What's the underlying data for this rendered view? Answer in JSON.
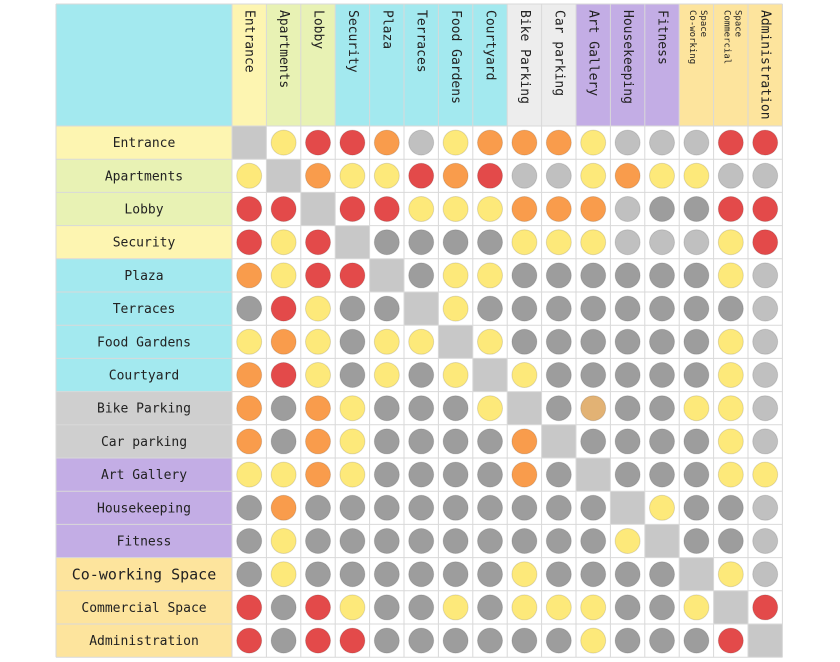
{
  "matrix": {
    "colors": {
      "cyan": "#a3e9ef",
      "yellow": "#fdf5b1",
      "lightgreen": "#e8f2b4",
      "gray": "#cfcfcf",
      "lightgray": "#ededed",
      "purple": "#c3ade5",
      "orange_light": "#fde49d",
      "diagonal": "#c8c8c8"
    },
    "dot_colors": {
      "R": "#e34a4a",
      "O": "#f99c4c",
      "Y": "#fde97a",
      "G": "#9d9d9d",
      "L": "#c0c0c0",
      "T": "#e2b274"
    },
    "rows": [
      {
        "label": "Entrance",
        "bg": "yellow"
      },
      {
        "label": "Apartments",
        "bg": "lightgreen"
      },
      {
        "label": "Lobby",
        "bg": "lightgreen"
      },
      {
        "label": "Security",
        "bg": "yellow"
      },
      {
        "label": "Plaza",
        "bg": "cyan"
      },
      {
        "label": "Terraces",
        "bg": "cyan"
      },
      {
        "label": "Food Gardens",
        "bg": "cyan"
      },
      {
        "label": "Courtyard",
        "bg": "cyan"
      },
      {
        "label": "Bike Parking",
        "bg": "gray"
      },
      {
        "label": "Car parking",
        "bg": "gray"
      },
      {
        "label": "Art Gallery",
        "bg": "purple"
      },
      {
        "label": "Housekeeping",
        "bg": "purple"
      },
      {
        "label": "Fitness",
        "bg": "purple"
      },
      {
        "label": "Co-working Space",
        "bg": "orange_light"
      },
      {
        "label": "Commercial Space",
        "bg": "orange_light"
      },
      {
        "label": "Administration",
        "bg": "orange_light"
      }
    ],
    "columns": [
      {
        "label": "Entrance",
        "bg": "yellow"
      },
      {
        "label": "Apartments",
        "bg": "lightgreen"
      },
      {
        "label": "Lobby",
        "bg": "lightgreen"
      },
      {
        "label": "Security",
        "bg": "cyan"
      },
      {
        "label": "Plaza",
        "bg": "cyan"
      },
      {
        "label": "Terraces",
        "bg": "cyan"
      },
      {
        "label": "Food Gardens",
        "bg": "cyan"
      },
      {
        "label": "Courtyard",
        "bg": "cyan"
      },
      {
        "label": "Bike Parking",
        "bg": "lightgray"
      },
      {
        "label": "Car parking",
        "bg": "lightgray"
      },
      {
        "label": "Art Gallery",
        "bg": "purple"
      },
      {
        "label": "Housekeeping",
        "bg": "purple"
      },
      {
        "label": "Fitness",
        "bg": "purple"
      },
      {
        "label": "Co-working Space",
        "bg": "orange_light"
      },
      {
        "label": "Commercial Space",
        "bg": "orange_light"
      },
      {
        "label": "Administration",
        "bg": "orange_light"
      }
    ],
    "cells": [
      "-YRROLYOOOYLLLRR",
      "Y-OYYRORLLYOYYLL",
      "RR-RRYYYOOOLGGRR",
      "RYR-GGGGYYYLLLYR",
      "OYRR-GYYGGGGGGYL",
      "GRYGG-YGGGGGGGGL",
      "YOYGYY-YGGGGGGYL",
      "ORYGYGY-YGGGGGYL",
      "OGOYGGGY-GTGGYYL",
      "OGOYGGGGO-GGGGYL",
      "YYOYGGGGOG-GGGYY",
      "GOGGGGGGGGG-YGGL",
      "GYGGGGGGGGGY-GGL",
      "GYGGGGGGYGGGG-YL",
      "RGRYGGYGYYYGGY-R",
      "RGRRGGGGGGYGGGR-"
    ]
  }
}
